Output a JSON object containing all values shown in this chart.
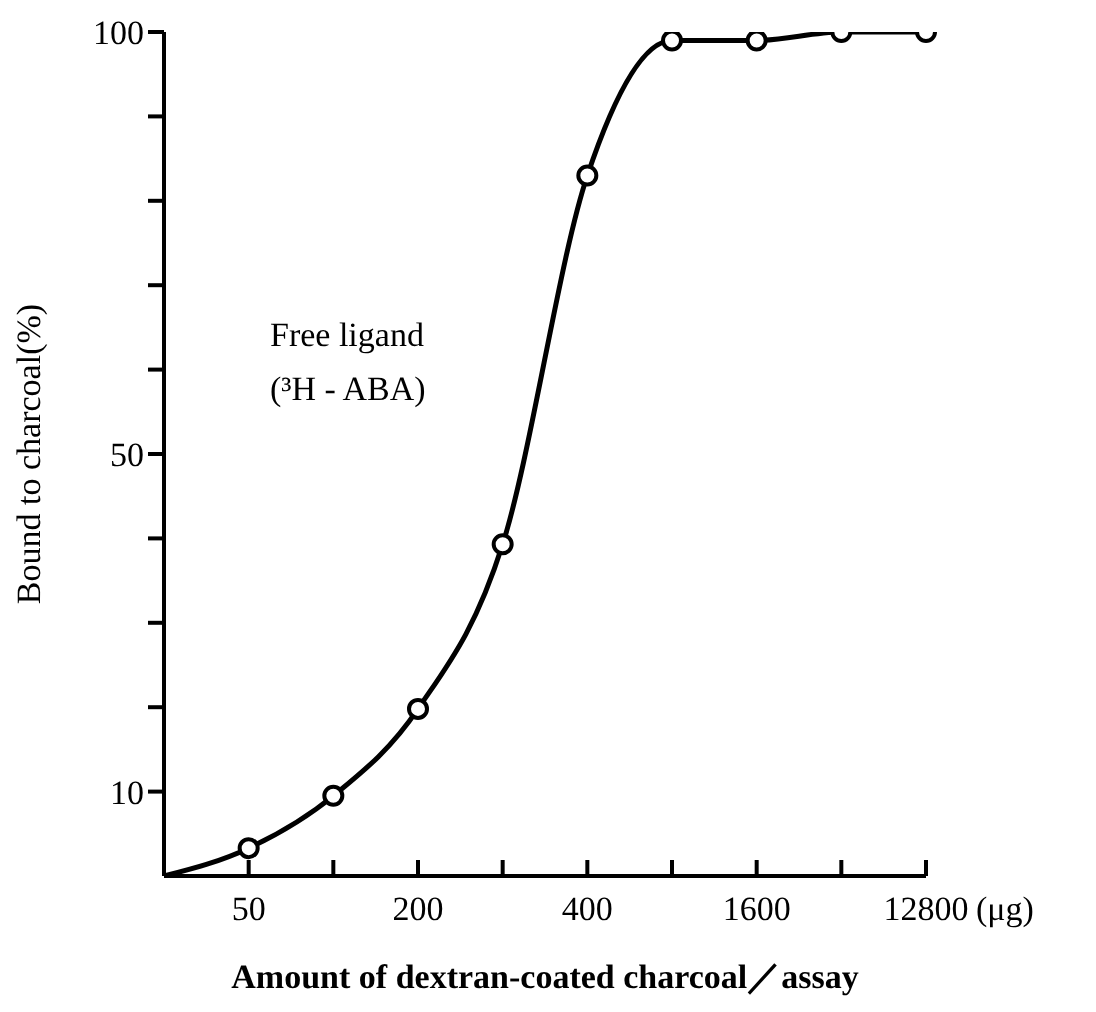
{
  "chart_data": {
    "type": "line",
    "xlabel": "Amount of dextran-coated charcoal／assay",
    "ylabel": "Bound to charcoal(%)",
    "categories": [
      null,
      "50",
      null,
      "200",
      null,
      "400",
      null,
      "1600",
      null,
      "12800"
    ],
    "series": [
      {
        "color": "#000000",
        "marker": "none",
        "values": [
          0,
          3.3,
          9.5,
          19.8,
          39.3,
          83,
          99,
          99,
          100,
          100
        ]
      },
      {
        "type": "scatter",
        "color": "#000000",
        "marker": "circle",
        "values": [
          null,
          3.3,
          9.5,
          19.8,
          39.3,
          83,
          99,
          99,
          100,
          100
        ]
      }
    ],
    "ylim": [
      0,
      100
    ],
    "yticks": [
      {
        "value": 10,
        "label": "10"
      },
      {
        "value": 20,
        "label": null
      },
      {
        "value": 30,
        "label": null
      },
      {
        "value": 40,
        "label": null
      },
      {
        "value": 50,
        "label": "50"
      },
      {
        "value": 60,
        "label": null
      },
      {
        "value": 70,
        "label": null
      },
      {
        "value": 80,
        "label": null
      },
      {
        "value": 90,
        "label": null
      },
      {
        "value": 100,
        "label": "100"
      }
    ],
    "grid": false,
    "annotations": [
      "Free ligand",
      "(³H - ABA)",
      "(μg)"
    ]
  }
}
